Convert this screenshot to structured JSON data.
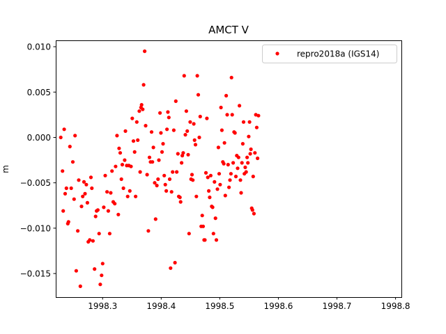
{
  "chart_data": {
    "type": "scatter",
    "title": "AMCT V",
    "xlabel": "",
    "ylabel": "m",
    "xlim": [
      1998.22,
      1998.81
    ],
    "ylim": [
      -0.0176,
      0.0107
    ],
    "x_ticks": [
      1998.3,
      1998.4,
      1998.5,
      1998.6,
      1998.7,
      1998.8
    ],
    "x_tick_labels": [
      "1998.3",
      "1998.4",
      "1998.5",
      "1998.6",
      "1998.7",
      "1998.8"
    ],
    "y_ticks": [
      0.01,
      0.005,
      0.0,
      -0.005,
      -0.01,
      -0.015
    ],
    "y_tick_labels": [
      "0.010",
      "0.005",
      "0.000",
      "−0.005",
      "−0.010",
      "−0.015"
    ],
    "legend_position": "top-right",
    "grid": false,
    "series": [
      {
        "name": "repro2018a (IGS14)",
        "color": "#ff0000",
        "marker": "dot",
        "points": [
          [
            1998.2286,
            0.0
          ],
          [
            1998.2315,
            -0.0037
          ],
          [
            1998.2327,
            -0.0081
          ],
          [
            1998.2344,
            0.0009
          ],
          [
            1998.2361,
            -0.0062
          ],
          [
            1998.2382,
            -0.0056
          ],
          [
            1998.2406,
            -0.0095
          ],
          [
            1998.2418,
            -0.0093
          ],
          [
            1998.2441,
            -0.001
          ],
          [
            1998.2464,
            -0.0056
          ],
          [
            1998.2492,
            -0.0027
          ],
          [
            1998.2513,
            -0.0068
          ],
          [
            1998.253,
            0.0002
          ],
          [
            1998.255,
            -0.0147
          ],
          [
            1998.2576,
            -0.0103
          ],
          [
            1998.2592,
            -0.0047
          ],
          [
            1998.262,
            -0.0164
          ],
          [
            1998.264,
            -0.0076
          ],
          [
            1998.266,
            -0.0065
          ],
          [
            1998.2682,
            -0.0049
          ],
          [
            1998.27,
            -0.0062
          ],
          [
            1998.2722,
            -0.0052
          ],
          [
            1998.274,
            -0.0072
          ],
          [
            1998.2755,
            -0.0115
          ],
          [
            1998.278,
            -0.0113
          ],
          [
            1998.2801,
            -0.0044
          ],
          [
            1998.2816,
            -0.0056
          ],
          [
            1998.2835,
            -0.0114
          ],
          [
            1998.2863,
            -0.0145
          ],
          [
            1998.288,
            -0.0087
          ],
          [
            1998.2897,
            -0.0081
          ],
          [
            1998.2918,
            -0.008
          ],
          [
            1998.294,
            -0.0106
          ],
          [
            1998.296,
            -0.0162
          ],
          [
            1998.2983,
            -0.0152
          ],
          [
            1998.3,
            -0.0139
          ],
          [
            1998.302,
            -0.0077
          ],
          [
            1998.3045,
            -0.0042
          ],
          [
            1998.3075,
            -0.006
          ],
          [
            1998.3097,
            -0.0081
          ],
          [
            1998.3121,
            -0.0106
          ],
          [
            1998.3138,
            -0.0061
          ],
          [
            1998.316,
            -0.0037
          ],
          [
            1998.3181,
            -0.0071
          ],
          [
            1998.3207,
            -0.0073
          ],
          [
            1998.3222,
            -0.0032
          ],
          [
            1998.3246,
            0.0002
          ],
          [
            1998.3268,
            -0.0085
          ],
          [
            1998.3281,
            -0.0012
          ],
          [
            1998.33,
            -0.0017
          ],
          [
            1998.332,
            -0.0046
          ],
          [
            1998.3336,
            -0.003
          ],
          [
            1998.3355,
            -0.0056
          ],
          [
            1998.3376,
            -0.0025
          ],
          [
            1998.3389,
            0.0007
          ],
          [
            1998.3412,
            -0.0031
          ],
          [
            1998.3427,
            -0.0065
          ],
          [
            1998.3448,
            -0.0031
          ],
          [
            1998.3465,
            -0.0059
          ],
          [
            1998.3485,
            -0.0032
          ],
          [
            1998.3506,
            0.0021
          ],
          [
            1998.3526,
            -0.0004
          ],
          [
            1998.3547,
            -0.0016
          ],
          [
            1998.3563,
            -0.0065
          ],
          [
            1998.3584,
            0.0017
          ],
          [
            1998.36,
            -0.0003
          ],
          [
            1998.3626,
            0.0029
          ],
          [
            1998.364,
            -0.0038
          ],
          [
            1998.3655,
            0.0033
          ],
          [
            1998.3666,
            0.0036
          ],
          [
            1998.3685,
            0.0031
          ],
          [
            1998.37,
            0.0058
          ],
          [
            1998.3718,
            0.0095
          ],
          [
            1998.3735,
            0.0013
          ],
          [
            1998.376,
            -0.0041
          ],
          [
            1998.3781,
            -0.0103
          ],
          [
            1998.38,
            -0.0022
          ],
          [
            1998.3818,
            -0.0027
          ],
          [
            1998.3835,
            0.0006
          ],
          [
            1998.385,
            -0.0027
          ],
          [
            1998.3866,
            -0.0011
          ],
          [
            1998.3889,
            -0.005
          ],
          [
            1998.3905,
            -0.009
          ],
          [
            1998.3926,
            -0.0053
          ],
          [
            1998.3946,
            -0.0046
          ],
          [
            1998.3961,
            -0.0025
          ],
          [
            1998.3979,
            0.0027
          ],
          [
            1998.3995,
            0.0005
          ],
          [
            1998.4014,
            -0.0016
          ],
          [
            1998.4032,
            -0.0007
          ],
          [
            1998.4052,
            -0.0042
          ],
          [
            1998.407,
            -0.0052
          ],
          [
            1998.4086,
            -0.0059
          ],
          [
            1998.4099,
            0.0009
          ],
          [
            1998.4114,
            0.0028
          ],
          [
            1998.413,
            0.0022
          ],
          [
            1998.4145,
            -0.0046
          ],
          [
            1998.416,
            -0.0144
          ],
          [
            1998.4177,
            -0.006
          ],
          [
            1998.4195,
            -0.0038
          ],
          [
            1998.4215,
            0.0008
          ],
          [
            1998.4235,
            -0.0138
          ],
          [
            1998.425,
            0.004
          ],
          [
            1998.4265,
            -0.0038
          ],
          [
            1998.4285,
            -0.0018
          ],
          [
            1998.43,
            -0.0065
          ],
          [
            1998.432,
            -0.0066
          ],
          [
            1998.4332,
            -0.0071
          ],
          [
            1998.4348,
            -0.0028
          ],
          [
            1998.436,
            -0.002
          ],
          [
            1998.4376,
            -0.0017
          ],
          [
            1998.4392,
            0.0068
          ],
          [
            1998.4413,
            0.0003
          ],
          [
            1998.4429,
            0.0029
          ],
          [
            1998.4445,
            0.0007
          ],
          [
            1998.446,
            -0.0019
          ],
          [
            1998.4476,
            -0.0106
          ],
          [
            1998.4494,
            0.0017
          ],
          [
            1998.451,
            -0.0046
          ],
          [
            1998.4525,
            -0.0041
          ],
          [
            1998.454,
            -0.0047
          ],
          [
            1998.4556,
            0.0015
          ],
          [
            1998.457,
            -0.0003
          ],
          [
            1998.4585,
            -0.0008
          ],
          [
            1998.46,
            -0.0065
          ],
          [
            1998.4616,
            0.0068
          ],
          [
            1998.4632,
            0.0047
          ],
          [
            1998.465,
            0.0
          ],
          [
            1998.4666,
            0.0023
          ],
          [
            1998.4682,
            -0.0098
          ],
          [
            1998.47,
            -0.0086
          ],
          [
            1998.4716,
            -0.0098
          ],
          [
            1998.4732,
            -0.0113
          ],
          [
            1998.4746,
            -0.0113
          ],
          [
            1998.4763,
            -0.0039
          ],
          [
            1998.478,
            0.0021
          ],
          [
            1998.4796,
            -0.0044
          ],
          [
            1998.4812,
            -0.0059
          ],
          [
            1998.4828,
            -0.0066
          ],
          [
            1998.4846,
            -0.0042
          ],
          [
            1998.4862,
            -0.0076
          ],
          [
            1998.4878,
            -0.0077
          ],
          [
            1998.4892,
            -0.0106
          ],
          [
            1998.491,
            -0.0049
          ],
          [
            1998.4926,
            -0.0089
          ],
          [
            1998.4942,
            -0.0113
          ],
          [
            1998.496,
            -0.0057
          ],
          [
            1998.4976,
            -0.0011
          ],
          [
            1998.499,
            -0.004
          ],
          [
            1998.5006,
            -0.0052
          ],
          [
            1998.502,
            0.0033
          ],
          [
            1998.5036,
            0.0008
          ],
          [
            1998.5052,
            -0.0027
          ],
          [
            1998.5068,
            -0.0029
          ],
          [
            1998.508,
            -0.0006
          ],
          [
            1998.5094,
            -0.0064
          ],
          [
            1998.511,
            0.0046
          ],
          [
            1998.5126,
            0.0025
          ],
          [
            1998.5142,
            -0.003
          ],
          [
            1998.5157,
            -0.0055
          ],
          [
            1998.5174,
            -0.0047
          ],
          [
            1998.519,
            -0.004
          ],
          [
            1998.52,
            0.0066
          ],
          [
            1998.5212,
            0.0025
          ],
          [
            1998.5228,
            -0.0028
          ],
          [
            1998.5244,
            0.0006
          ],
          [
            1998.526,
            0.0005
          ],
          [
            1998.5275,
            -0.0043
          ],
          [
            1998.529,
            -0.002
          ],
          [
            1998.5305,
            -0.0034
          ],
          [
            1998.532,
            -0.0022
          ],
          [
            1998.5336,
            0.0035
          ],
          [
            1998.5352,
            -0.0047
          ],
          [
            1998.5364,
            -0.0061
          ],
          [
            1998.5378,
            -0.0028
          ],
          [
            1998.5393,
            -0.0007
          ],
          [
            1998.5406,
            0.0017
          ],
          [
            1998.542,
            -0.004
          ],
          [
            1998.5434,
            -0.0033
          ],
          [
            1998.545,
            -0.0038
          ],
          [
            1998.5466,
            -0.0022
          ],
          [
            1998.548,
            -0.0028
          ],
          [
            1998.5494,
            0.0001
          ],
          [
            1998.5508,
            0.0017
          ],
          [
            1998.552,
            -0.0018
          ],
          [
            1998.5532,
            -0.0013
          ],
          [
            1998.5545,
            -0.0078
          ],
          [
            1998.5558,
            -0.008
          ],
          [
            1998.557,
            -0.0043
          ],
          [
            1998.5583,
            -0.0084
          ],
          [
            1998.56,
            -0.0017
          ],
          [
            1998.5615,
            0.0025
          ],
          [
            1998.563,
            0.0011
          ],
          [
            1998.5645,
            -0.0023
          ],
          [
            1998.566,
            0.0024
          ]
        ]
      }
    ]
  }
}
